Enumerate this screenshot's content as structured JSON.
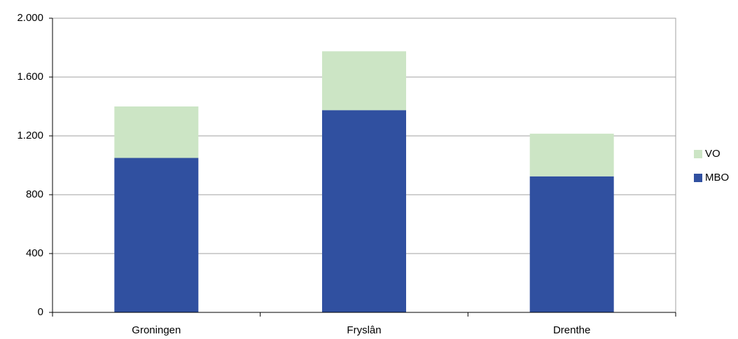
{
  "chart_data": {
    "type": "stacked-bar",
    "categories": [
      "Groningen",
      "Fryslân",
      "Drenthe"
    ],
    "series": [
      {
        "name": "MBO",
        "color": "#3050a0",
        "values": [
          1050,
          1375,
          925
        ]
      },
      {
        "name": "VO",
        "color": "#cce5c5",
        "values": [
          350,
          400,
          290
        ]
      }
    ],
    "ylim": [
      0,
      2000
    ],
    "yticks": [
      0,
      400,
      800,
      {
        "value": 1200,
        "label": "1.200"
      },
      {
        "value": 1600,
        "label": "1.600"
      },
      {
        "value": 2000,
        "label": "2.000"
      }
    ],
    "grid": true,
    "legend": "right"
  }
}
